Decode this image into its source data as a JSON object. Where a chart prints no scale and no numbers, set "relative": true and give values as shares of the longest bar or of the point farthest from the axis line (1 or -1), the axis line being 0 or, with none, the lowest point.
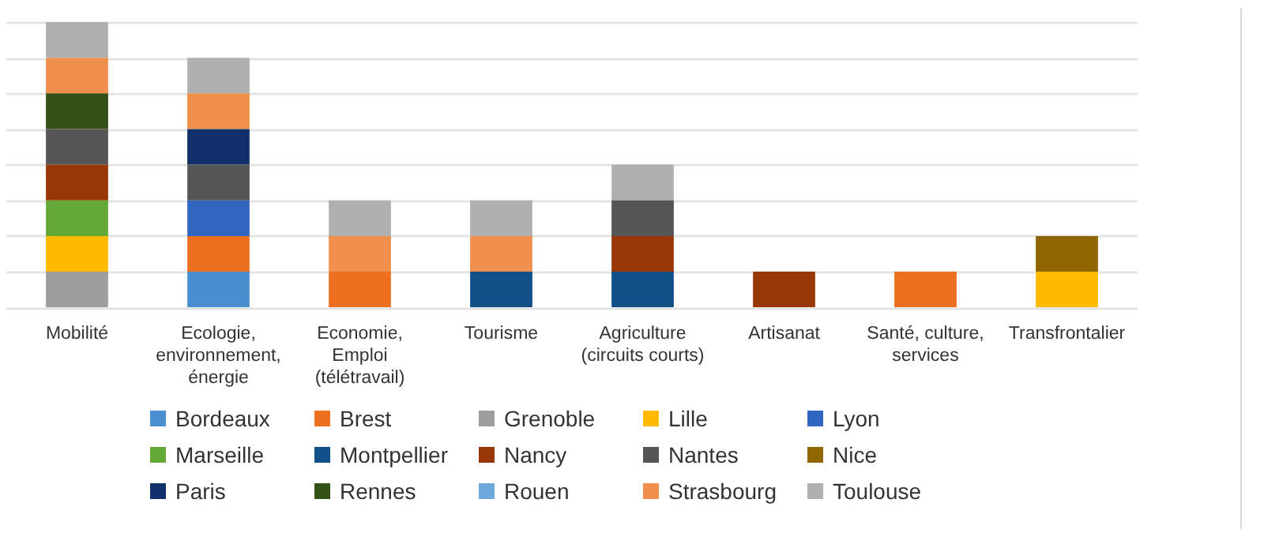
{
  "chart_data": {
    "type": "bar",
    "stacked": true,
    "relative": true,
    "grid": "y",
    "legend": "bottom",
    "categories": [
      "Mobilité",
      "Ecologie, environnement, énergie",
      "Economie, Emploi (télétravail)",
      "Tourisme",
      "Agriculture (circuits courts)",
      "Artisanat",
      "Santé, culture, services",
      "Transfrontalier"
    ],
    "series": [
      {
        "name": "Bordeaux",
        "color": "#4a90d0",
        "values": [
          null,
          0.125,
          null,
          null,
          null,
          null,
          null,
          null
        ]
      },
      {
        "name": "Brest",
        "color": "#ed7020",
        "values": [
          null,
          0.125,
          0.125,
          null,
          null,
          null,
          0.125,
          null
        ]
      },
      {
        "name": "Grenoble",
        "color": "#9e9e9e",
        "values": [
          0.125,
          null,
          null,
          null,
          null,
          null,
          null,
          null
        ]
      },
      {
        "name": "Lille",
        "color": "#ffbb00",
        "values": [
          0.125,
          null,
          null,
          null,
          null,
          null,
          null,
          0.125
        ]
      },
      {
        "name": "Lyon",
        "color": "#3066c0",
        "values": [
          null,
          0.125,
          null,
          null,
          null,
          null,
          null,
          null
        ]
      },
      {
        "name": "Marseille",
        "color": "#64a838",
        "values": [
          0.125,
          null,
          null,
          null,
          null,
          null,
          null,
          null
        ]
      },
      {
        "name": "Montpellier",
        "color": "#12508a",
        "values": [
          null,
          null,
          null,
          0.125,
          0.125,
          null,
          null,
          null
        ]
      },
      {
        "name": "Nancy",
        "color": "#993606",
        "values": [
          0.125,
          null,
          null,
          null,
          0.125,
          0.125,
          null,
          null
        ]
      },
      {
        "name": "Nantes",
        "color": "#555555",
        "values": [
          0.125,
          0.125,
          null,
          null,
          0.125,
          null,
          null,
          null
        ]
      },
      {
        "name": "Nice",
        "color": "#8f6700",
        "values": [
          null,
          null,
          null,
          null,
          null,
          null,
          null,
          0.125
        ]
      },
      {
        "name": "Paris",
        "color": "#11306a",
        "values": [
          null,
          0.125,
          null,
          null,
          null,
          null,
          null,
          null
        ]
      },
      {
        "name": "Rennes",
        "color": "#325218",
        "values": [
          0.125,
          null,
          null,
          null,
          null,
          null,
          null,
          null
        ]
      },
      {
        "name": "Rouen",
        "color": "#6fa8dc",
        "values": [
          null,
          null,
          null,
          null,
          null,
          null,
          null,
          null
        ]
      },
      {
        "name": "Strasbourg",
        "color": "#f0904c",
        "values": [
          0.125,
          0.125,
          0.125,
          0.125,
          null,
          null,
          null,
          null
        ]
      },
      {
        "name": "Toulouse",
        "color": "#b0b0b0",
        "values": [
          0.125,
          0.125,
          0.125,
          0.125,
          0.125,
          null,
          null,
          null
        ]
      }
    ]
  }
}
